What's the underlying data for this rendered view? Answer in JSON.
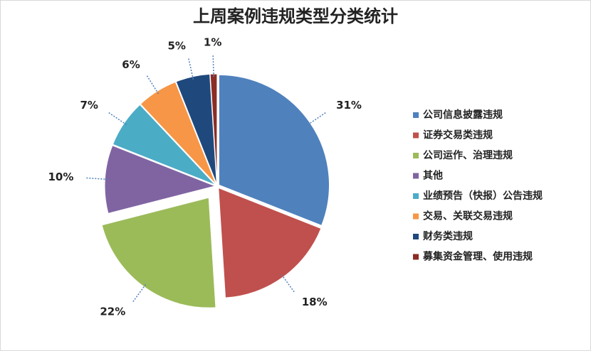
{
  "chart_data": {
    "type": "pie",
    "title": "上周案例违规类型分类统计",
    "categories": [
      "公司信息披露违规",
      "证券交易类违规",
      "公司运作、治理违规",
      "其他",
      "业绩预告（快报）公告违规",
      "交易、关联交易违规",
      "财务类违规",
      "募集资金管理、使用违规"
    ],
    "values": [
      31,
      18,
      22,
      10,
      7,
      6,
      5,
      1
    ],
    "value_labels": [
      "31%",
      "18%",
      "22%",
      "10%",
      "7%",
      "6%",
      "5%",
      "1%"
    ],
    "colors": [
      "#4f81bd",
      "#c0504d",
      "#9bbb59",
      "#8064a2",
      "#4bacc6",
      "#f79646",
      "#1f497d",
      "#8b2d25"
    ],
    "legend": "right"
  }
}
